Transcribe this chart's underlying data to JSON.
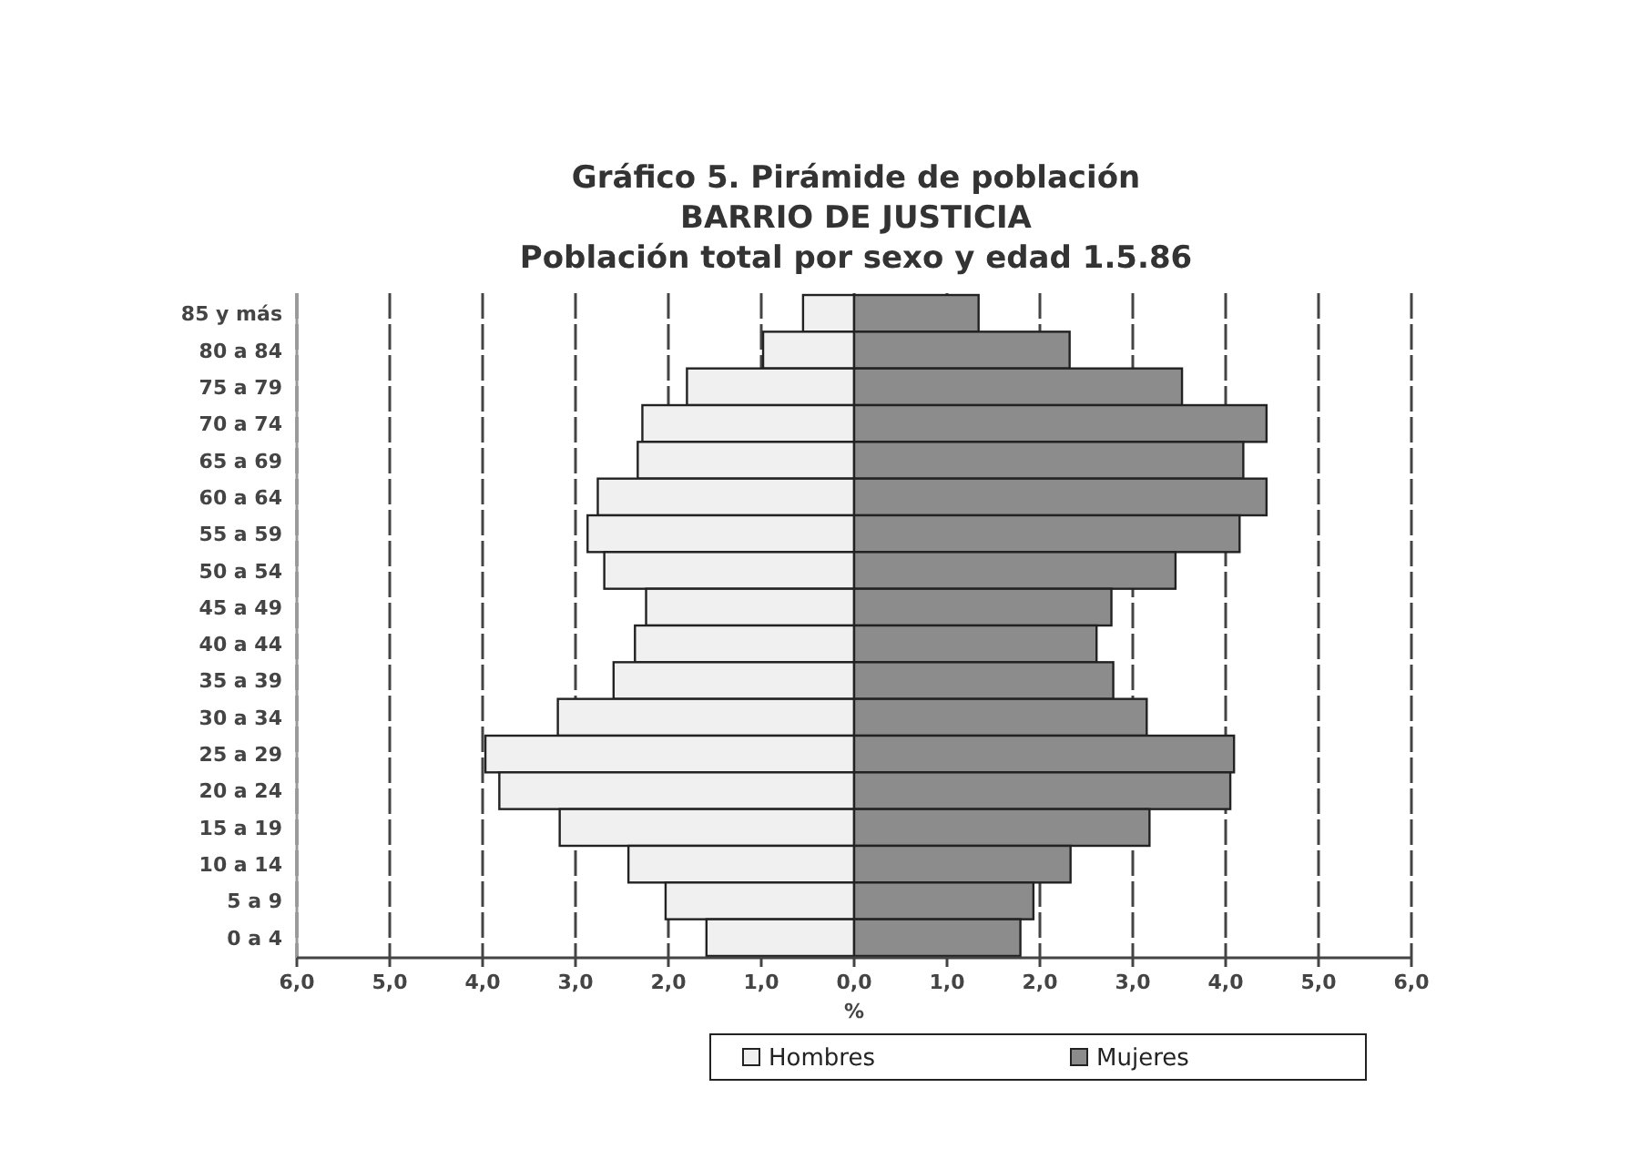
{
  "chart_data": {
    "type": "bar",
    "orientation": "horizontal",
    "stacked": true,
    "title": "Gráfico 5. Pirámide de población\nBARRIO DE JUSTICIA\nPoblación total por sexo y edad 1.5.86",
    "xlabel": "%",
    "categories": [
      "85 y más",
      "80 a 84",
      "75 a 79",
      "70 a 74",
      "65 a 69",
      "60 a 64",
      "55 a 59",
      "50 a 54",
      "45 a 49",
      "40 a 44",
      "35 a 39",
      "30 a 34",
      "25 a 29",
      "20 a 24",
      "15 a 19",
      "10 a 14",
      "5 a 9",
      "0 a 4"
    ],
    "series": [
      {
        "name": "Hombres",
        "color": "#f0f0f0",
        "values": [
          -0.55,
          -0.98,
          -1.8,
          -2.28,
          -2.33,
          -2.76,
          -2.87,
          -2.69,
          -2.24,
          -2.36,
          -2.59,
          -3.19,
          -3.97,
          -3.82,
          -3.17,
          -2.43,
          -2.03,
          -1.59
        ]
      },
      {
        "name": "Mujeres",
        "color": "#8c8c8c",
        "values": [
          1.34,
          2.32,
          3.53,
          4.44,
          4.19,
          4.44,
          4.15,
          3.46,
          2.77,
          2.61,
          2.79,
          3.15,
          4.09,
          4.05,
          3.18,
          2.33,
          1.93,
          1.79
        ]
      }
    ],
    "xlim": [
      -6,
      6
    ],
    "xticks": [
      {
        "value": -6,
        "label": "6,0"
      },
      {
        "value": -5,
        "label": "5,0"
      },
      {
        "value": -4,
        "label": "4,0"
      },
      {
        "value": -3,
        "label": "3,0"
      },
      {
        "value": -2,
        "label": "2,0"
      },
      {
        "value": -1,
        "label": "1,0"
      },
      {
        "value": 0,
        "label": "0,0"
      },
      {
        "value": 1,
        "label": "1,0"
      },
      {
        "value": 2,
        "label": "2,0"
      },
      {
        "value": 3,
        "label": "3,0"
      },
      {
        "value": 4,
        "label": "4,0"
      },
      {
        "value": 5,
        "label": "5,0"
      },
      {
        "value": 6,
        "label": "6,0"
      }
    ],
    "grid": "x",
    "legend": "bottom"
  }
}
